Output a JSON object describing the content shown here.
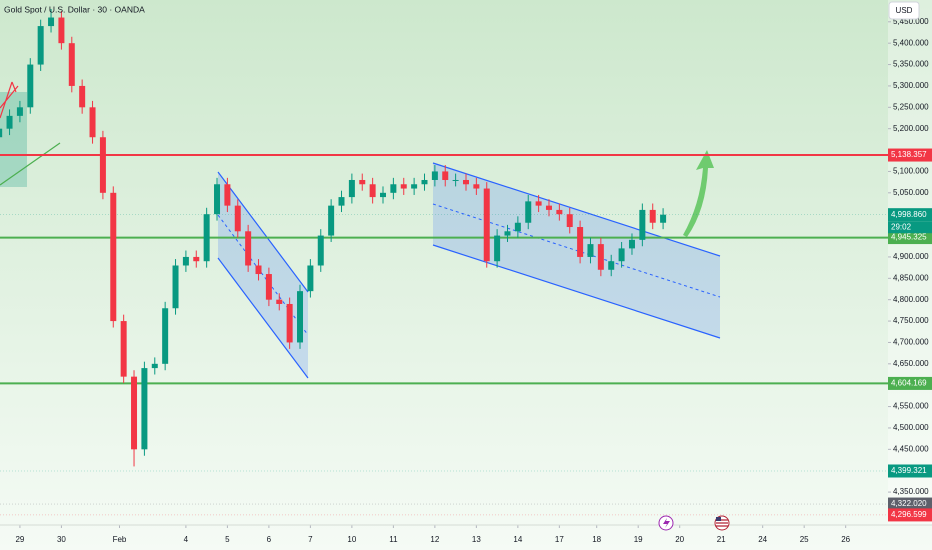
{
  "chart_data": {
    "type": "candlestick",
    "title": "Gold Spot / U.S. Dollar · 30 · OANDA",
    "currency": "USD",
    "timer": "29:02",
    "up_color": "#089981",
    "down_color": "#f23645",
    "xlim": [
      -0.48,
      20.92
    ],
    "ylim": [
      4273,
      5501
    ],
    "x": [
      -0.5,
      -0.25,
      0,
      0.25,
      0.5,
      0.75,
      1,
      1.25,
      1.5,
      1.75,
      2,
      2.25,
      2.5,
      2.75,
      3,
      3.25,
      3.5,
      3.75,
      4,
      4.25,
      4.5,
      4.75,
      5,
      5.25,
      5.5,
      5.75,
      6,
      6.25,
      6.5,
      6.75,
      7,
      7.25,
      7.5,
      7.75,
      8,
      8.25,
      8.5,
      8.75,
      9,
      9.25,
      9.5,
      9.75,
      10,
      10.25,
      10.5,
      10.75,
      11,
      11.25,
      11.5,
      11.75,
      12,
      12.25,
      12.5,
      12.75,
      13,
      13.25,
      13.5,
      13.75,
      14,
      14.25,
      14.5,
      14.75,
      15,
      15.25,
      15.5
    ],
    "open": [
      5180,
      5200,
      5230,
      5250,
      5350,
      5440,
      5460,
      5400,
      5300,
      5250,
      5180,
      5050,
      4750,
      4620,
      4450,
      4640,
      4650,
      4780,
      4880,
      4900,
      4890,
      5000,
      5070,
      5020,
      4960,
      4880,
      4860,
      4800,
      4790,
      4700,
      4820,
      4880,
      4950,
      5020,
      5040,
      5080,
      5070,
      5040,
      5050,
      5070,
      5060,
      5070,
      5080,
      5100,
      5080,
      5080,
      5070,
      5060,
      4890,
      4950,
      4960,
      4980,
      5030,
      5020,
      5010,
      5000,
      4970,
      4900,
      4930,
      4870,
      4890,
      4920,
      4940,
      5010,
      4980
    ],
    "high": [
      5215,
      5245,
      5265,
      5365,
      5455,
      5480,
      5475,
      5415,
      5315,
      5265,
      5195,
      5065,
      4765,
      4635,
      4655,
      4665,
      4795,
      4895,
      4915,
      4915,
      5015,
      5085,
      5085,
      5035,
      4975,
      4895,
      4875,
      4815,
      4805,
      4835,
      4895,
      4965,
      5035,
      5055,
      5095,
      5095,
      5085,
      5065,
      5085,
      5085,
      5085,
      5095,
      5115,
      5115,
      5095,
      5095,
      5085,
      5075,
      4965,
      4975,
      4995,
      5045,
      5045,
      5035,
      5025,
      5015,
      4985,
      4945,
      4945,
      4905,
      4935,
      4955,
      5025,
      5025,
      5014
    ],
    "low": [
      5165,
      5185,
      5215,
      5235,
      5335,
      5425,
      5385,
      5285,
      5235,
      5165,
      5035,
      4735,
      4605,
      4410,
      4435,
      4625,
      4635,
      4765,
      4865,
      4875,
      4875,
      4985,
      5005,
      4945,
      4865,
      4845,
      4785,
      4775,
      4685,
      4685,
      4805,
      4865,
      4935,
      5005,
      5025,
      5055,
      5025,
      5025,
      5035,
      5045,
      5045,
      5055,
      5065,
      5065,
      5065,
      5055,
      5045,
      4875,
      4875,
      4935,
      4945,
      4965,
      5005,
      4995,
      4985,
      4955,
      4885,
      4885,
      4855,
      4855,
      4875,
      4905,
      4925,
      4965,
      4965
    ],
    "close": [
      5200,
      5230,
      5250,
      5350,
      5440,
      5460,
      5400,
      5300,
      5250,
      5180,
      5050,
      4750,
      4620,
      4450,
      4640,
      4650,
      4780,
      4880,
      4900,
      4890,
      5000,
      5070,
      5020,
      4960,
      4880,
      4860,
      4800,
      4790,
      4700,
      4820,
      4880,
      4950,
      5020,
      5040,
      5080,
      5070,
      5040,
      5050,
      5070,
      5060,
      5070,
      5080,
      5100,
      5080,
      5080,
      5070,
      5060,
      4890,
      4950,
      4960,
      4980,
      5030,
      5020,
      5010,
      5000,
      4970,
      4900,
      4930,
      4870,
      4890,
      4920,
      4940,
      5010,
      4980,
      4998.86
    ],
    "yticks": [
      {
        "value": 5450,
        "label": "5,450.000"
      },
      {
        "value": 5400,
        "label": "5,400.000"
      },
      {
        "value": 5350,
        "label": "5,350.000"
      },
      {
        "value": 5300,
        "label": "5,300.000"
      },
      {
        "value": 5250,
        "label": "5,250.000"
      },
      {
        "value": 5200,
        "label": "5,200.000"
      },
      {
        "value": 5100,
        "label": "5,100.000"
      },
      {
        "value": 5050,
        "label": "5,050.000"
      },
      {
        "value": 4900,
        "label": "4,900.000"
      },
      {
        "value": 4850,
        "label": "4,850.000"
      },
      {
        "value": 4800,
        "label": "4,800.000"
      },
      {
        "value": 4750,
        "label": "4,750.000"
      },
      {
        "value": 4700,
        "label": "4,700.000"
      },
      {
        "value": 4650,
        "label": "4,650.000"
      },
      {
        "value": 4550,
        "label": "4,550.000"
      },
      {
        "value": 4500,
        "label": "4,500.000"
      },
      {
        "value": 4450,
        "label": "4,450.000"
      },
      {
        "value": 4350,
        "label": "4,350.000"
      }
    ],
    "xticks": [
      {
        "value": 0,
        "label": "29"
      },
      {
        "value": 1,
        "label": "30"
      },
      {
        "value": 2.4,
        "label": "Feb"
      },
      {
        "value": 4,
        "label": "4"
      },
      {
        "value": 5,
        "label": "5"
      },
      {
        "value": 6,
        "label": "6"
      },
      {
        "value": 7,
        "label": "7"
      },
      {
        "value": 8,
        "label": "10"
      },
      {
        "value": 9,
        "label": "11"
      },
      {
        "value": 10,
        "label": "12"
      },
      {
        "value": 11,
        "label": "13"
      },
      {
        "value": 12,
        "label": "14"
      },
      {
        "value": 13,
        "label": "17"
      },
      {
        "value": 13.9,
        "label": "18"
      },
      {
        "value": 14.9,
        "label": "19"
      },
      {
        "value": 15.9,
        "label": "20"
      },
      {
        "value": 16.9,
        "label": "21"
      },
      {
        "value": 17.9,
        "label": "24"
      },
      {
        "value": 18.9,
        "label": "25"
      },
      {
        "value": 19.9,
        "label": "26"
      }
    ],
    "price_tags": [
      {
        "value": 5138.357,
        "label": "5,138.357",
        "color": "#f23645",
        "line": true
      },
      {
        "value": 4998.86,
        "label": "4,998.860",
        "color": "#089981",
        "line": false
      },
      {
        "value": 4945.325,
        "label": "4,945.325",
        "color": "#4caf50",
        "line": true
      },
      {
        "value": 4604.169,
        "label": "4,604.169",
        "color": "#4caf50",
        "line": true
      },
      {
        "value": 4399.321,
        "label": "4,399.321",
        "color": "#089981",
        "line": false
      },
      {
        "value": 4322.02,
        "label": "4,322.020",
        "color": "#5d606b",
        "line": false
      },
      {
        "value": 4296.599,
        "label": "4,296.599",
        "color": "#f23645",
        "line": false
      }
    ]
  }
}
